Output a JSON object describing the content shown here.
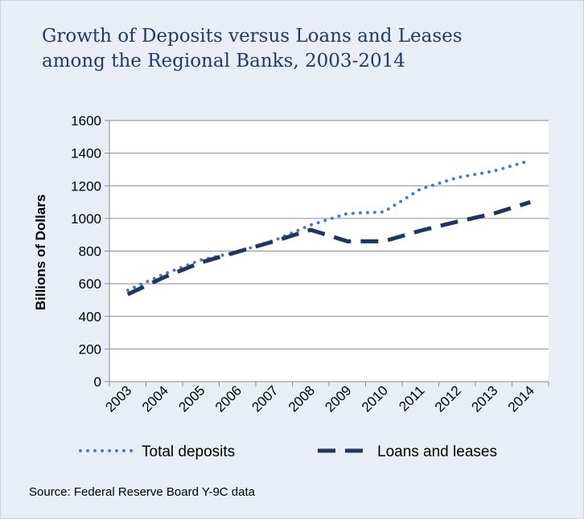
{
  "title_line1": "Growth of Deposits versus Loans and Leases",
  "title_line2": "among the Regional Banks, 2003-2014",
  "source": "Source: Federal Reserve Board Y-9C data",
  "chart_data": {
    "type": "line",
    "title": "Growth of Deposits versus Loans and Leases among the Regional Banks, 2003-2014",
    "xlabel": "",
    "ylabel": "Billions  of Dollars",
    "categories": [
      "2003",
      "2004",
      "2005",
      "2006",
      "2007",
      "2008",
      "2009",
      "2010",
      "2011",
      "2012",
      "2013",
      "2014"
    ],
    "ylim": [
      0,
      1600
    ],
    "yticks": [
      0,
      200,
      400,
      600,
      800,
      1000,
      1200,
      1400,
      1600
    ],
    "grid": "horizontal",
    "legend_position": "bottom",
    "series": [
      {
        "name": "Total deposits",
        "style": "dotted",
        "color": "#4a7cc4",
        "values": [
          560,
          660,
          745,
          795,
          865,
          960,
          1030,
          1040,
          1180,
          1250,
          1290,
          1355
        ]
      },
      {
        "name": "Loans and leases",
        "style": "dashed",
        "color": "#1f3760",
        "values": [
          535,
          640,
          730,
          795,
          860,
          930,
          860,
          860,
          925,
          980,
          1030,
          1100
        ]
      }
    ]
  }
}
